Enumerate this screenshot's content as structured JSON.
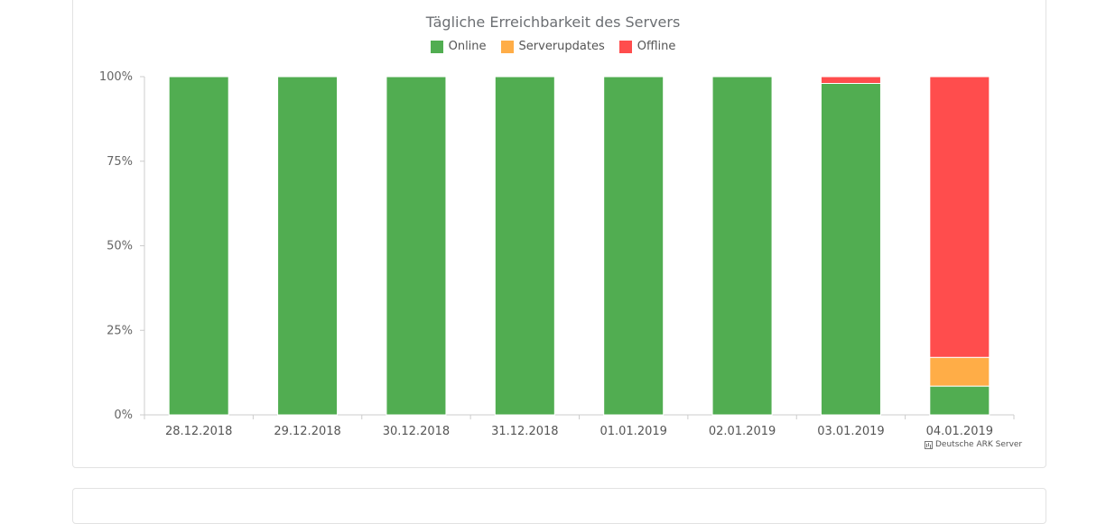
{
  "chart_data": {
    "type": "bar",
    "stacked": true,
    "title": "Tägliche Erreichbarkeit des Servers",
    "categories": [
      "28.12.2018",
      "29.12.2018",
      "30.12.2018",
      "31.12.2018",
      "01.01.2019",
      "02.01.2019",
      "03.01.2019",
      "04.01.2019"
    ],
    "series": [
      {
        "name": "Online",
        "color": "#51ad51",
        "values": [
          100,
          100,
          100,
          100,
          100,
          100,
          98,
          8.5
        ]
      },
      {
        "name": "Serverupdates",
        "color": "#ffad47",
        "values": [
          0,
          0,
          0,
          0,
          0,
          0,
          0,
          8.5
        ]
      },
      {
        "name": "Offline",
        "color": "#ff4d4d",
        "values": [
          0,
          0,
          0,
          0,
          0,
          0,
          2,
          83
        ]
      }
    ],
    "ylim": [
      0,
      100
    ],
    "yticks": [
      "0%",
      "25%",
      "50%",
      "75%",
      "100%"
    ],
    "grid": false,
    "legend_position": "top"
  },
  "credit": "Deutsche ARK Server"
}
